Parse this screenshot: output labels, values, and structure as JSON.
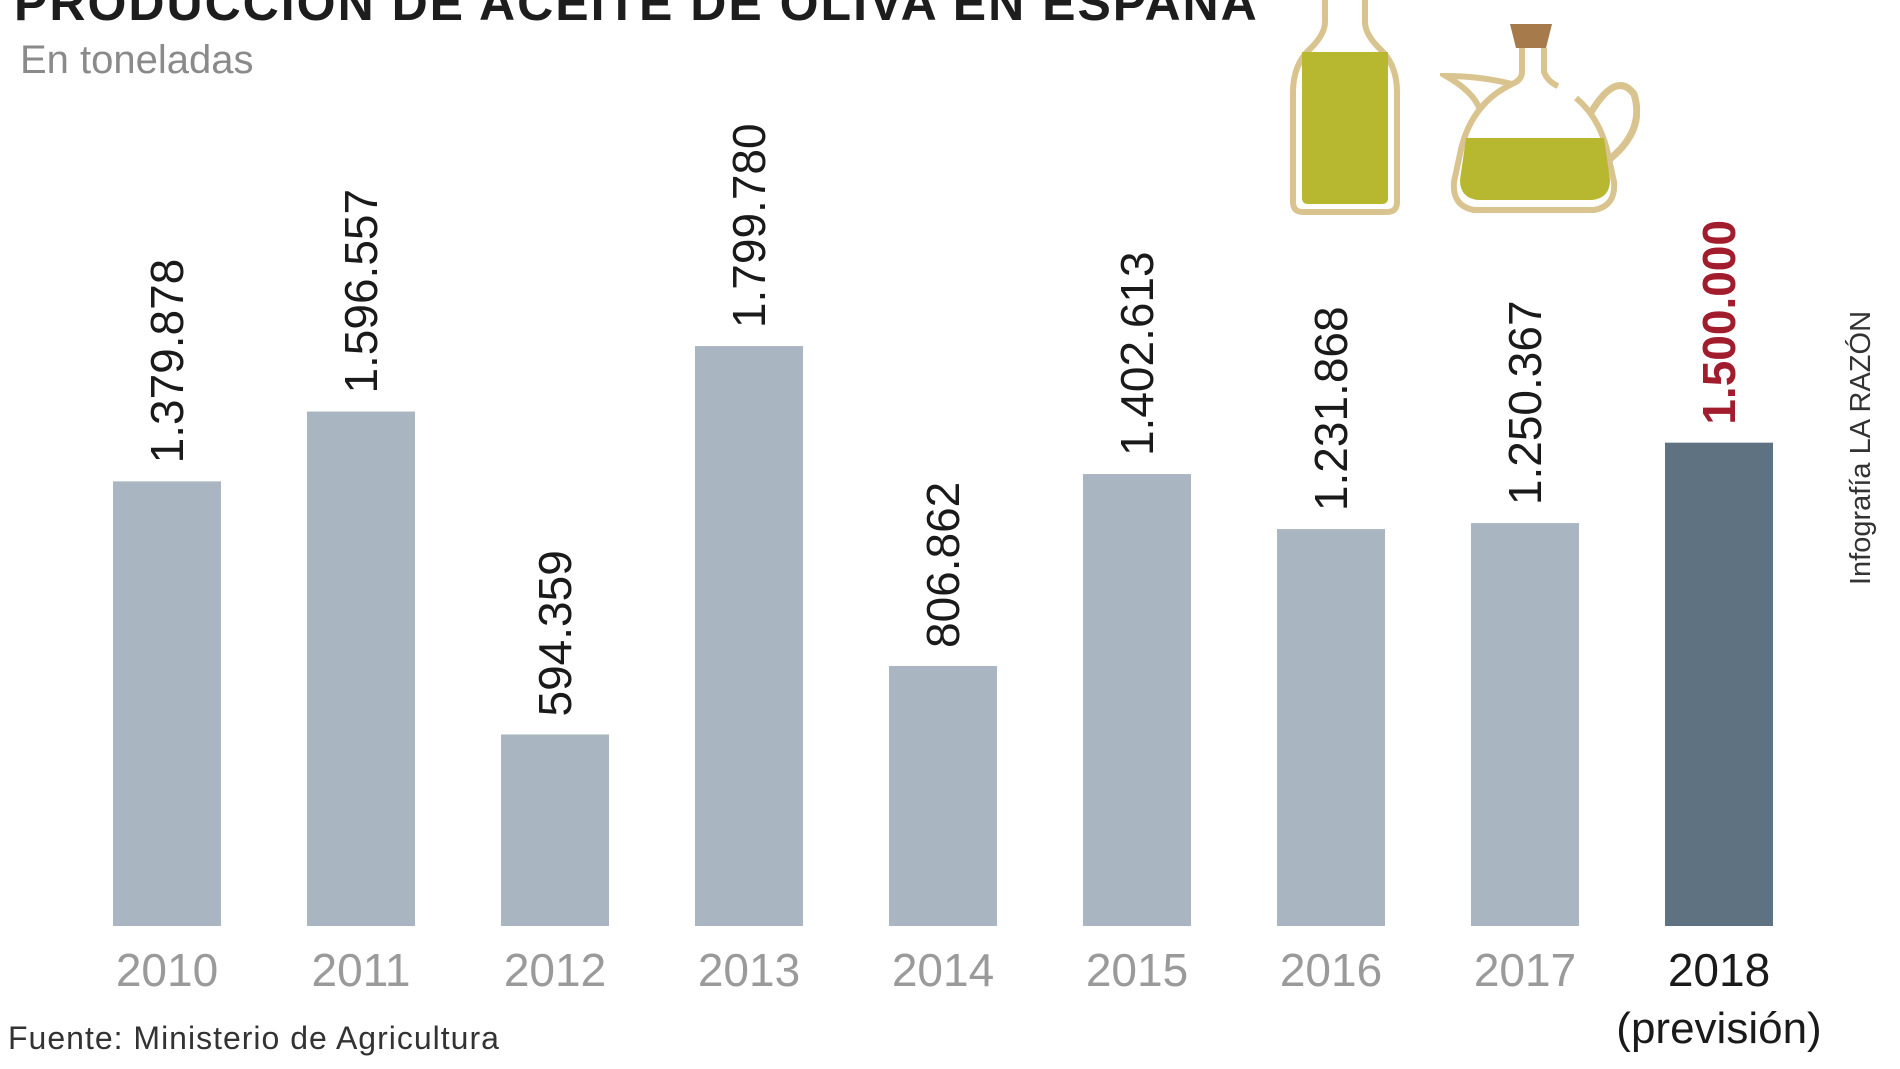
{
  "header": {
    "title": "PRODUCCIÓN DE ACEITE DE OLIVA EN ESPAÑA",
    "subtitle": "En toneladas"
  },
  "footer": {
    "source": "Fuente: Ministerio de Agricultura",
    "credit": "Infografía LA RAZÓN"
  },
  "colors": {
    "bar": "#a9b5c0",
    "bar_highlight": "#5f7282",
    "value_label": "#1a1a1a",
    "value_label_highlight": "#a11c2d",
    "axis_label": "#9a9a9a",
    "axis_label_highlight": "#1a1a1a",
    "oil": "#b7b830",
    "outline": "#d9c48f"
  },
  "icons": [
    "oil-bottle-icon",
    "oil-cruet-icon"
  ],
  "chart_data": {
    "type": "bar",
    "title": "PRODUCCIÓN DE ACEITE DE OLIVA EN ESPAÑA",
    "subtitle": "En toneladas",
    "categories": [
      "2010",
      "2011",
      "2012",
      "2013",
      "2014",
      "2015",
      "2016",
      "2017",
      "2018"
    ],
    "category_note": {
      "2018": "(previsión)"
    },
    "values": [
      1379878,
      1596557,
      594359,
      1799780,
      806862,
      1402613,
      1231868,
      1250367,
      1500000
    ],
    "labels": [
      "1.379.878",
      "1.596.557",
      "594.359",
      "1.799.780",
      "806.862",
      "1.402.613",
      "1.231.868",
      "1.250.367",
      "1.500.000"
    ],
    "highlight_index": 8,
    "ylim": [
      0,
      1800000
    ],
    "grid": false,
    "legend": "none"
  }
}
